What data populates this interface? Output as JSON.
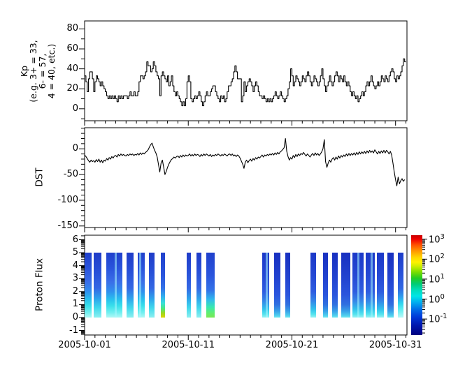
{
  "figure": {
    "background": "#ffffff",
    "frame_color": "#000000",
    "line_color": "#000000"
  },
  "x_axis": {
    "range_days": [
      0,
      31.1
    ],
    "minor_tick_every_days": 1,
    "ticks": [
      {
        "day": 0,
        "label": "2005-10-01"
      },
      {
        "day": 10,
        "label": "2005-10-11"
      },
      {
        "day": 20,
        "label": "2005-10-21"
      },
      {
        "day": 30,
        "label": "2005-10-31"
      }
    ]
  },
  "chart_data": [
    {
      "type": "line",
      "style": "step",
      "title": "Kp index panel",
      "ylabel_lines": [
        "Kp",
        "(e.g. 3+ = 33,",
        "6- = 57,",
        "4 = 40, etc.)"
      ],
      "ylim": [
        -12,
        88
      ],
      "yticks": [
        {
          "v": 0,
          "label": "0"
        },
        {
          "v": 20,
          "label": "20"
        },
        {
          "v": 40,
          "label": "40"
        },
        {
          "v": 60,
          "label": "60"
        },
        {
          "v": 80,
          "label": "80"
        }
      ],
      "y_minor": [
        -10,
        10,
        30,
        50,
        70
      ],
      "samples_per_day": 8,
      "values": [
        33,
        27,
        17,
        30,
        37,
        37,
        30,
        17,
        27,
        33,
        30,
        27,
        23,
        27,
        23,
        20,
        17,
        13,
        10,
        13,
        10,
        13,
        10,
        13,
        10,
        7,
        13,
        10,
        13,
        10,
        13,
        13,
        13,
        10,
        13,
        17,
        13,
        13,
        17,
        13,
        13,
        17,
        27,
        33,
        33,
        30,
        33,
        37,
        47,
        43,
        43,
        37,
        40,
        47,
        43,
        37,
        33,
        30,
        13,
        33,
        37,
        33,
        30,
        27,
        33,
        23,
        27,
        33,
        23,
        17,
        13,
        17,
        13,
        10,
        7,
        3,
        7,
        3,
        10,
        27,
        33,
        27,
        10,
        7,
        10,
        13,
        10,
        13,
        17,
        13,
        7,
        3,
        7,
        13,
        17,
        13,
        13,
        17,
        20,
        23,
        23,
        17,
        13,
        10,
        7,
        13,
        10,
        13,
        7,
        10,
        17,
        23,
        23,
        27,
        30,
        37,
        43,
        37,
        30,
        30,
        30,
        7,
        13,
        27,
        17,
        23,
        27,
        30,
        27,
        23,
        17,
        23,
        27,
        23,
        17,
        13,
        13,
        10,
        13,
        10,
        7,
        10,
        7,
        10,
        7,
        10,
        13,
        17,
        13,
        10,
        13,
        17,
        13,
        10,
        7,
        10,
        13,
        20,
        27,
        40,
        33,
        23,
        27,
        33,
        30,
        27,
        23,
        27,
        33,
        30,
        27,
        33,
        37,
        33,
        27,
        23,
        27,
        33,
        30,
        27,
        23,
        27,
        33,
        40,
        30,
        23,
        17,
        23,
        27,
        33,
        27,
        23,
        27,
        33,
        37,
        33,
        27,
        33,
        30,
        27,
        33,
        27,
        23,
        27,
        23,
        17,
        13,
        17,
        13,
        10,
        13,
        7,
        10,
        13,
        17,
        13,
        17,
        23,
        27,
        23,
        27,
        33,
        27,
        23,
        20,
        23,
        27,
        23,
        27,
        33,
        30,
        27,
        33,
        30,
        27,
        33,
        37,
        40,
        37,
        30,
        27,
        33,
        30,
        33,
        37,
        43,
        50,
        47
      ]
    },
    {
      "type": "line",
      "style": "line",
      "title": "DST panel",
      "ylabel_lines": [
        "DST"
      ],
      "ylim": [
        -153,
        41
      ],
      "yticks": [
        {
          "v": 0,
          "label": "0"
        },
        {
          "v": -50,
          "label": "-50"
        },
        {
          "v": -100,
          "label": "-100"
        },
        {
          "v": -150,
          "label": "-150"
        }
      ],
      "y_minor": [
        40,
        30,
        20,
        10,
        -10,
        -20,
        -30,
        -40,
        -60,
        -70,
        -80,
        -90,
        -110,
        -120,
        -130,
        -140
      ],
      "samples_per_day": 8,
      "values": [
        -12,
        -15,
        -19,
        -23,
        -26,
        -22,
        -25,
        -23,
        -26,
        -21,
        -25,
        -20,
        -26,
        -22,
        -27,
        -22,
        -24,
        -19,
        -22,
        -17,
        -20,
        -15,
        -18,
        -14,
        -13,
        -16,
        -11,
        -14,
        -10,
        -13,
        -11,
        -13,
        -14,
        -11,
        -13,
        -10,
        -12,
        -10,
        -13,
        -11,
        -12,
        -9,
        -12,
        -8,
        -11,
        -8,
        -10,
        -7,
        -5,
        -2,
        3,
        8,
        11,
        4,
        -3,
        -8,
        -16,
        -30,
        -45,
        -28,
        -22,
        -35,
        -50,
        -44,
        -36,
        -30,
        -25,
        -21,
        -19,
        -16,
        -18,
        -15,
        -14,
        -17,
        -13,
        -16,
        -12,
        -15,
        -12,
        -14,
        -13,
        -10,
        -14,
        -11,
        -14,
        -10,
        -13,
        -11,
        -12,
        -15,
        -11,
        -14,
        -10,
        -13,
        -10,
        -12,
        -14,
        -11,
        -15,
        -12,
        -14,
        -11,
        -13,
        -10,
        -12,
        -14,
        -11,
        -13,
        -10,
        -12,
        -14,
        -11,
        -10,
        -13,
        -10,
        -14,
        -12,
        -15,
        -12,
        -14,
        -18,
        -24,
        -30,
        -38,
        -26,
        -22,
        -27,
        -23,
        -20,
        -24,
        -19,
        -22,
        -17,
        -20,
        -16,
        -18,
        -15,
        -12,
        -16,
        -12,
        -14,
        -11,
        -13,
        -10,
        -12,
        -9,
        -12,
        -8,
        -11,
        -7,
        -10,
        -6,
        -4,
        -1,
        2,
        20,
        -5,
        -15,
        -22,
        -17,
        -20,
        -13,
        -17,
        -11,
        -15,
        -10,
        -13,
        -9,
        -11,
        -7,
        -11,
        -14,
        -10,
        -13,
        -16,
        -12,
        -9,
        -13,
        -8,
        -12,
        -9,
        -13,
        -10,
        -6,
        0,
        18,
        -25,
        -36,
        -28,
        -22,
        -26,
        -20,
        -17,
        -22,
        -16,
        -20,
        -14,
        -18,
        -13,
        -16,
        -12,
        -15,
        -10,
        -14,
        -9,
        -13,
        -9,
        -12,
        -8,
        -12,
        -7,
        -11,
        -6,
        -10,
        -6,
        -9,
        -5,
        -9,
        -4,
        -8,
        -3,
        -7,
        -4,
        -8,
        -2,
        -6,
        -10,
        -5,
        -9,
        -4,
        -8,
        -3,
        -8,
        -3,
        -6,
        -10,
        -5,
        -12,
        -28,
        -45,
        -60,
        -72,
        -55,
        -68,
        -62,
        -58,
        -63,
        -60
      ]
    },
    {
      "type": "heatmap",
      "style": "spectrogram",
      "title": "Proton Flux panel",
      "ylabel_lines": [
        "Proton Flux"
      ],
      "ylim": [
        -1.35,
        6.35
      ],
      "bar_span_y": [
        0,
        5
      ],
      "yticks": [
        {
          "v": -1,
          "label": "-1"
        },
        {
          "v": 0,
          "label": "0"
        },
        {
          "v": 1,
          "label": "1"
        },
        {
          "v": 2,
          "label": "2"
        },
        {
          "v": 3,
          "label": "3"
        },
        {
          "v": 4,
          "label": "4"
        },
        {
          "v": 5,
          "label": "5"
        },
        {
          "v": 6,
          "label": "6"
        }
      ],
      "log_minor": true,
      "bars": [
        {
          "d0": 0.0,
          "d1": 0.67,
          "profile": "bright"
        },
        {
          "d0": 0.88,
          "d1": 1.62,
          "profile": "cyan"
        },
        {
          "d0": 2.09,
          "d1": 3.64,
          "profile": "bright",
          "stripe": 0.55
        },
        {
          "d0": 4.05,
          "d1": 4.72,
          "profile": "cyan"
        },
        {
          "d0": 5.12,
          "d1": 5.8,
          "profile": "bright",
          "stripe": 0.3
        },
        {
          "d0": 6.2,
          "d1": 6.74,
          "profile": "cyan"
        },
        {
          "d0": 7.35,
          "d1": 7.75,
          "profile": "yellow"
        },
        {
          "d0": 9.84,
          "d1": 10.25,
          "profile": "cyan"
        },
        {
          "d0": 10.79,
          "d1": 11.26,
          "profile": "cyan"
        },
        {
          "d0": 11.73,
          "d1": 12.54,
          "profile": "green"
        },
        {
          "d0": 17.13,
          "d1": 17.8,
          "profile": "bluecyan",
          "stripe": 0.65
        },
        {
          "d0": 18.27,
          "d1": 18.88,
          "profile": "blue"
        },
        {
          "d0": 19.35,
          "d1": 19.82,
          "profile": "blue"
        },
        {
          "d0": 21.78,
          "d1": 22.32,
          "profile": "bluecyan"
        },
        {
          "d0": 22.99,
          "d1": 23.47,
          "profile": "blue"
        },
        {
          "d0": 23.87,
          "d1": 24.41,
          "profile": "blue"
        },
        {
          "d0": 24.75,
          "d1": 25.62,
          "profile": "blue"
        },
        {
          "d0": 25.82,
          "d1": 26.9,
          "profile": "bluecyan",
          "stripe": 0.5
        },
        {
          "d0": 27.1,
          "d1": 27.98,
          "profile": "bluecyan",
          "stripe": 0.6
        },
        {
          "d0": 28.18,
          "d1": 28.86,
          "profile": "bluecyan"
        },
        {
          "d0": 29.2,
          "d1": 29.8,
          "profile": "blue"
        },
        {
          "d0": 30.21,
          "d1": 30.75,
          "profile": "brightend"
        }
      ]
    }
  ],
  "flux_profiles": {
    "bright": [
      [
        0,
        "#2040cc"
      ],
      [
        25,
        "#2a55dd"
      ],
      [
        45,
        "#3a6ee8"
      ],
      [
        60,
        "#3090ee"
      ],
      [
        72,
        "#28c0ee"
      ],
      [
        82,
        "#38e0ea"
      ],
      [
        92,
        "#70eff0"
      ],
      [
        100,
        "#b0f8f4"
      ]
    ],
    "cyan": [
      [
        0,
        "#1f3cc8"
      ],
      [
        30,
        "#2850d8"
      ],
      [
        55,
        "#3468e4"
      ],
      [
        72,
        "#2ea8ec"
      ],
      [
        85,
        "#40d8ec"
      ],
      [
        100,
        "#8cf0f0"
      ]
    ],
    "yellow": [
      [
        0,
        "#2040cc"
      ],
      [
        35,
        "#2a55dd"
      ],
      [
        55,
        "#3372e8"
      ],
      [
        68,
        "#30b0ee"
      ],
      [
        78,
        "#38e0d8"
      ],
      [
        86,
        "#48e880"
      ],
      [
        93,
        "#9ad820"
      ],
      [
        100,
        "#ddd600"
      ]
    ],
    "green": [
      [
        0,
        "#2040cc"
      ],
      [
        35,
        "#2a55dd"
      ],
      [
        58,
        "#3372e8"
      ],
      [
        72,
        "#30b8ee"
      ],
      [
        84,
        "#38e8b0"
      ],
      [
        93,
        "#60ee70"
      ],
      [
        100,
        "#7ae855"
      ]
    ],
    "blue": [
      [
        0,
        "#1830c0"
      ],
      [
        40,
        "#2244d0"
      ],
      [
        65,
        "#2a55dd"
      ],
      [
        80,
        "#3070e0"
      ],
      [
        90,
        "#38a0e8"
      ],
      [
        97,
        "#50d0ee"
      ],
      [
        100,
        "#70e8f0"
      ]
    ],
    "bluecyan": [
      [
        0,
        "#1b38c8"
      ],
      [
        35,
        "#2548d4"
      ],
      [
        60,
        "#2e5ce0"
      ],
      [
        75,
        "#3488e8"
      ],
      [
        87,
        "#30c0ec"
      ],
      [
        95,
        "#55e4ee"
      ],
      [
        100,
        "#98f2f2"
      ]
    ],
    "brightend": [
      [
        0,
        "#1d3cc8"
      ],
      [
        30,
        "#2750d8"
      ],
      [
        55,
        "#3066e2"
      ],
      [
        68,
        "#2f9cec"
      ],
      [
        78,
        "#2fd4ee"
      ],
      [
        86,
        "#55ecf0"
      ],
      [
        100,
        "#b6f8f6"
      ]
    ]
  },
  "colorbar": {
    "gradient_top_to_bottom": [
      [
        0,
        "#c80000"
      ],
      [
        4,
        "#f00000"
      ],
      [
        10,
        "#ff5500"
      ],
      [
        16,
        "#ff9900"
      ],
      [
        22,
        "#ffd400"
      ],
      [
        27,
        "#fff200"
      ],
      [
        31,
        "#d0ee00"
      ],
      [
        37,
        "#7add00"
      ],
      [
        43,
        "#22cc22"
      ],
      [
        49,
        "#00cc77"
      ],
      [
        55,
        "#00ddbb"
      ],
      [
        61,
        "#00e6e6"
      ],
      [
        67,
        "#00b0f0"
      ],
      [
        74,
        "#0070e8"
      ],
      [
        82,
        "#0038d8"
      ],
      [
        90,
        "#0018b0"
      ],
      [
        100,
        "#000080"
      ]
    ],
    "tick_labels": [
      {
        "base": "10",
        "exp": "3",
        "frac": 0.04
      },
      {
        "base": "10",
        "exp": "2",
        "frac": 0.24
      },
      {
        "base": "10",
        "exp": "1",
        "frac": 0.44
      },
      {
        "base": "10",
        "exp": "0",
        "frac": 0.64
      },
      {
        "base": "10",
        "exp": "-1",
        "frac": 0.84
      }
    ]
  }
}
